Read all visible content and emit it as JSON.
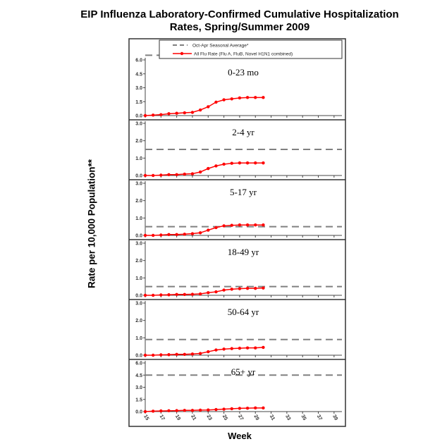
{
  "chart_data": {
    "type": "line",
    "title": "EIP Influenza Laboratory-Confirmed Cumulative Hospitalization Rates, Spring/Summer 2009",
    "title_lines": [
      "EIP Influenza Laboratory-Confirmed Cumulative Hospitalization",
      "Rates, Spring/Summer 2009"
    ],
    "xlabel": "Week",
    "ylabel": "Rate per 10,000 Population**",
    "x_ticks": [
      15,
      17,
      19,
      21,
      23,
      25,
      27,
      29,
      31,
      33,
      35,
      37,
      39
    ],
    "xlim": [
      15,
      40
    ],
    "legend": {
      "placement": "top",
      "entries": [
        "Oct-Apr Seasonal Average*",
        "All Flu Rate (Flu A, FluB, Novel H1N1 combined)"
      ]
    },
    "colors": {
      "series": "#ff0000",
      "average": "#808080"
    },
    "x": [
      15,
      16,
      17,
      18,
      19,
      20,
      21,
      22,
      23,
      24,
      25,
      26,
      27,
      28,
      29,
      30
    ],
    "panels": [
      {
        "label": "0-23 mo",
        "ylim": [
          0,
          6
        ],
        "y_ticks": [
          "0.0",
          "1.5",
          "3.0",
          "4.5",
          "6.0"
        ],
        "y_tick_values": [
          0,
          1.5,
          3,
          4.5,
          6
        ],
        "seasonal_average": 6.5,
        "values": [
          0,
          0.05,
          0.1,
          0.2,
          0.25,
          0.3,
          0.35,
          0.6,
          0.95,
          1.45,
          1.7,
          1.8,
          1.9,
          1.95,
          1.95,
          1.95
        ]
      },
      {
        "label": "2-4 yr",
        "ylim": [
          0,
          3
        ],
        "y_ticks": [
          "0.0",
          "1.0",
          "2.0",
          "3.0"
        ],
        "y_tick_values": [
          0,
          1,
          2,
          3
        ],
        "seasonal_average": 1.5,
        "values": [
          0,
          0,
          0.02,
          0.05,
          0.05,
          0.08,
          0.1,
          0.2,
          0.4,
          0.55,
          0.65,
          0.7,
          0.72,
          0.72,
          0.72,
          0.72
        ]
      },
      {
        "label": "5-17 yr",
        "ylim": [
          0,
          3
        ],
        "y_ticks": [
          "0.0",
          "1.0",
          "2.0",
          "3.0"
        ],
        "y_tick_values": [
          0,
          1,
          2,
          3
        ],
        "seasonal_average": 0.5,
        "values": [
          0,
          0,
          0.02,
          0.05,
          0.05,
          0.07,
          0.1,
          0.15,
          0.3,
          0.45,
          0.55,
          0.58,
          0.6,
          0.6,
          0.6,
          0.6
        ]
      },
      {
        "label": "18-49 yr",
        "ylim": [
          0,
          3
        ],
        "y_ticks": [
          "0.0",
          "1.0",
          "2.0",
          "3.0"
        ],
        "y_tick_values": [
          0,
          1,
          2,
          3
        ],
        "seasonal_average": 0.5,
        "values": [
          0,
          0,
          0.02,
          0.03,
          0.05,
          0.05,
          0.06,
          0.08,
          0.15,
          0.2,
          0.3,
          0.35,
          0.38,
          0.4,
          0.4,
          0.42
        ]
      },
      {
        "label": "50-64 yr",
        "ylim": [
          0,
          3
        ],
        "y_ticks": [
          "0.0",
          "1.0",
          "2.0",
          "3.0"
        ],
        "y_tick_values": [
          0,
          1,
          2,
          3
        ],
        "seasonal_average": 0.9,
        "values": [
          0,
          0,
          0.02,
          0.03,
          0.05,
          0.05,
          0.07,
          0.1,
          0.2,
          0.3,
          0.35,
          0.38,
          0.4,
          0.42,
          0.42,
          0.45
        ]
      },
      {
        "label": "65+ yr",
        "ylim": [
          0,
          6
        ],
        "y_ticks": [
          "0.0",
          "1.5",
          "3.0",
          "4.5",
          "6.0"
        ],
        "y_tick_values": [
          0,
          1.5,
          3,
          4.5,
          6
        ],
        "seasonal_average": 4.5,
        "values": [
          0,
          0.05,
          0.08,
          0.1,
          0.12,
          0.15,
          0.15,
          0.18,
          0.2,
          0.25,
          0.3,
          0.35,
          0.4,
          0.42,
          0.45,
          0.45
        ]
      }
    ]
  }
}
